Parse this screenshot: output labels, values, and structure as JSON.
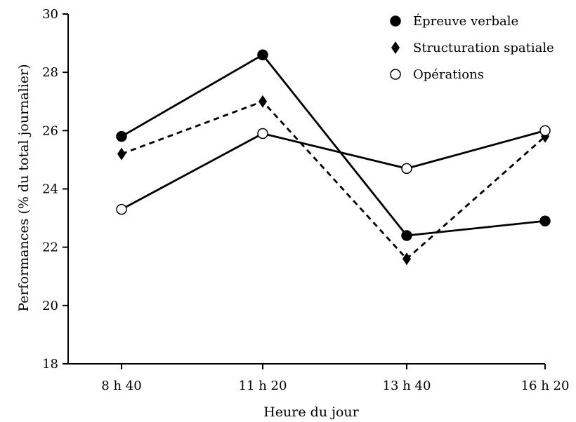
{
  "chart_data": {
    "type": "line",
    "title": "",
    "xlabel": "Heure du jour",
    "ylabel": "Performances (% du total journalier)",
    "categories": [
      "8 h 40",
      "11 h 20",
      "13 h 40",
      "16 h 20"
    ],
    "ylim": [
      18,
      30
    ],
    "yticks": [
      "18",
      "20",
      "22",
      "24",
      "26",
      "28",
      "30"
    ],
    "grid": false,
    "legend_position": "top-right",
    "series": [
      {
        "name": "Épreuve verbale",
        "marker": "filled-circle",
        "line": "solid",
        "color": "#000000",
        "values": [
          25.8,
          28.6,
          22.4,
          22.9
        ]
      },
      {
        "name": "Structuration spatiale",
        "marker": "filled-diamond",
        "line": "dashed",
        "color": "#000000",
        "values": [
          25.2,
          27.0,
          21.6,
          25.8
        ]
      },
      {
        "name": "Opérations",
        "marker": "open-circle",
        "line": "solid",
        "color": "#000000",
        "values": [
          23.3,
          25.9,
          24.7,
          26.0
        ]
      }
    ]
  }
}
